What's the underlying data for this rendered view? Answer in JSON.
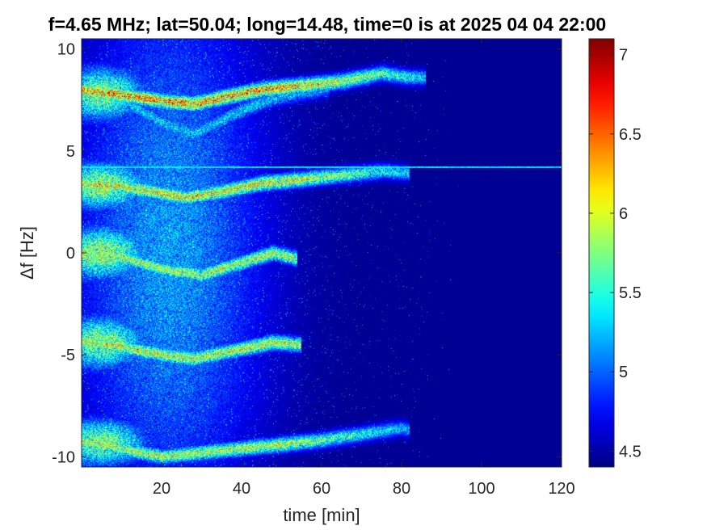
{
  "chart_data": {
    "type": "heatmap",
    "title": "f=4.65 MHz;  lat=50.04; long=14.48, time=0 is at 2025 04 04 22:00",
    "xlabel": "time [min]",
    "ylabel": "Δf [Hz]",
    "xlim": [
      0,
      120
    ],
    "ylim": [
      -10.5,
      10.5
    ],
    "xticks": [
      20,
      40,
      60,
      80,
      100,
      120
    ],
    "yticks": [
      -10,
      -5,
      0,
      5,
      10
    ],
    "colorbar": {
      "clim": [
        4.4,
        7.1
      ],
      "ticks": [
        4.5,
        5,
        5.5,
        6,
        6.5,
        7
      ],
      "colormap": "jet"
    },
    "background_value": 4.45,
    "constant_line": {
      "y": 4.2,
      "x_range": [
        0,
        120
      ],
      "value": 5.4
    },
    "traces": [
      {
        "x": [
          0,
          8,
          15,
          22,
          28,
          35,
          45,
          55,
          65,
          75,
          82,
          86
        ],
        "y": [
          8.0,
          7.8,
          7.6,
          7.4,
          7.3,
          7.6,
          8.0,
          8.2,
          8.4,
          8.8,
          8.6,
          8.6
        ],
        "intensity": 6.6,
        "spread": 0.25
      },
      {
        "x": [
          0,
          10,
          20,
          28,
          38,
          48,
          56,
          62
        ],
        "y": [
          8.2,
          7.5,
          6.4,
          5.8,
          6.8,
          7.6,
          7.9,
          8.1
        ],
        "intensity": 5.4,
        "spread": 0.3
      },
      {
        "x": [
          0,
          8,
          18,
          26,
          35,
          45,
          55,
          65,
          75,
          82
        ],
        "y": [
          3.4,
          3.3,
          3.0,
          2.7,
          3.0,
          3.4,
          3.6,
          3.8,
          4.0,
          3.9
        ],
        "intensity": 6.3,
        "spread": 0.25
      },
      {
        "x": [
          0,
          10,
          20,
          30,
          40,
          48,
          54
        ],
        "y": [
          0.0,
          -0.2,
          -0.8,
          -1.1,
          -0.5,
          0.0,
          -0.3
        ],
        "intensity": 6.1,
        "spread": 0.25
      },
      {
        "x": [
          0,
          10,
          20,
          28,
          38,
          48,
          55
        ],
        "y": [
          -4.3,
          -4.6,
          -5.0,
          -5.2,
          -4.8,
          -4.4,
          -4.5
        ],
        "intensity": 6.2,
        "spread": 0.25
      },
      {
        "x": [
          0,
          10,
          20,
          30,
          40,
          50,
          60,
          70,
          80,
          82
        ],
        "y": [
          -9.2,
          -9.6,
          -10.0,
          -9.8,
          -9.6,
          -9.4,
          -9.2,
          -8.9,
          -8.6,
          -8.7
        ],
        "intensity": 6.1,
        "spread": 0.25
      }
    ],
    "diffuse_regions": [
      {
        "x_center": 5,
        "y_center": 7.8,
        "x_sigma": 8,
        "y_sigma": 0.9,
        "intensity": 6.0
      },
      {
        "x_center": 5,
        "y_center": 3.3,
        "x_sigma": 8,
        "y_sigma": 0.8,
        "intensity": 6.1
      },
      {
        "x_center": 5,
        "y_center": 0.0,
        "x_sigma": 8,
        "y_sigma": 0.9,
        "intensity": 6.1
      },
      {
        "x_center": 5,
        "y_center": -4.4,
        "x_sigma": 8,
        "y_sigma": 0.9,
        "intensity": 6.0
      },
      {
        "x_center": 5,
        "y_center": -9.3,
        "x_sigma": 8,
        "y_sigma": 0.8,
        "intensity": 6.0
      },
      {
        "x_center": 22,
        "y_center": 0.0,
        "x_sigma": 16,
        "y_sigma": 9.0,
        "intensity": 5.3
      }
    ]
  }
}
